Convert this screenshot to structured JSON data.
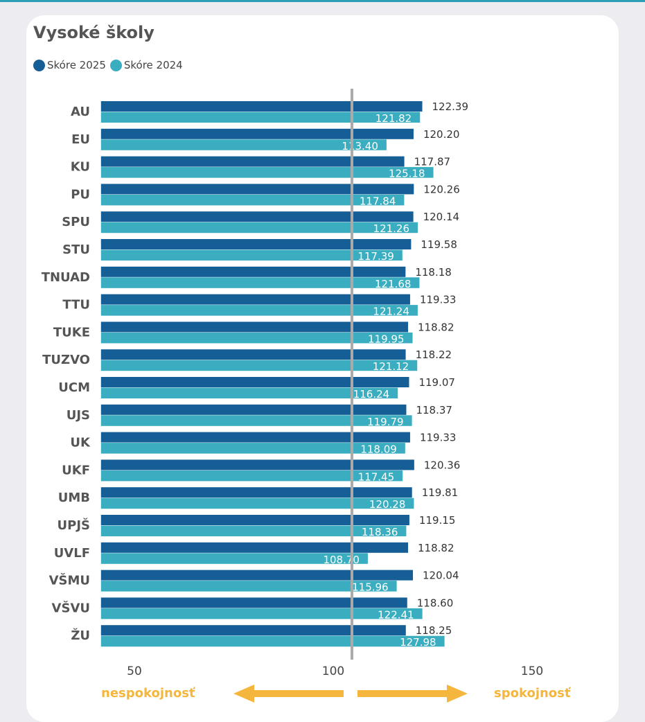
{
  "chart_data": {
    "type": "bar",
    "orientation": "horizontal",
    "title": "Vysoké školy",
    "categories": [
      "AU",
      "EU",
      "KU",
      "PU",
      "SPU",
      "STU",
      "TNUAD",
      "TTU",
      "TUKE",
      "TUZVO",
      "UCM",
      "UJS",
      "UK",
      "UKF",
      "UMB",
      "UPJŠ",
      "UVLF",
      "VŠMU",
      "VŠVU",
      "ŽU"
    ],
    "series": [
      {
        "name": "Skóre 2025",
        "color": "#155e96",
        "values": [
          122.39,
          120.2,
          117.87,
          120.26,
          120.14,
          119.58,
          118.18,
          119.33,
          118.82,
          118.22,
          119.07,
          118.37,
          119.33,
          120.36,
          119.81,
          119.15,
          118.82,
          120.04,
          118.6,
          118.25
        ]
      },
      {
        "name": "Skóre 2024",
        "color": "#3aaec0",
        "values": [
          121.82,
          113.4,
          125.18,
          117.84,
          121.26,
          117.39,
          121.68,
          121.24,
          119.95,
          121.12,
          116.24,
          119.79,
          118.09,
          117.45,
          120.28,
          118.36,
          108.7,
          115.96,
          122.41,
          127.98
        ]
      }
    ],
    "value_labels": {
      "2025": [
        "122.39",
        "120.20",
        "117.87",
        "120.26",
        "120.14",
        "119.58",
        "118.18",
        "119.33",
        "118.82",
        "118.22",
        "119.07",
        "118.37",
        "119.33",
        "120.36",
        "119.81",
        "119.15",
        "118.82",
        "120.04",
        "118.60",
        "118.25"
      ],
      "2024": [
        "121.82",
        "113.40",
        "125.18",
        "117.84",
        "121.26",
        "117.39",
        "121.68",
        "121.24",
        "119.95",
        "121.12",
        "116.24",
        "119.79",
        "118.09",
        "117.45",
        "120.28",
        "118.36",
        "108.70",
        "115.96",
        "122.41",
        "127.98"
      ]
    },
    "xlim": [
      41.6,
      170
    ],
    "xticks": [
      "50",
      "100",
      "150"
    ],
    "xtick_values": [
      50,
      100,
      150
    ],
    "reference_line": 104.7,
    "reference_line_color": "#aaaaaa",
    "grid": false,
    "legend_position": "top-left",
    "annotations": {
      "left": "nespokojnosť",
      "right": "spokojnosť",
      "color": "#f4b63c"
    }
  }
}
